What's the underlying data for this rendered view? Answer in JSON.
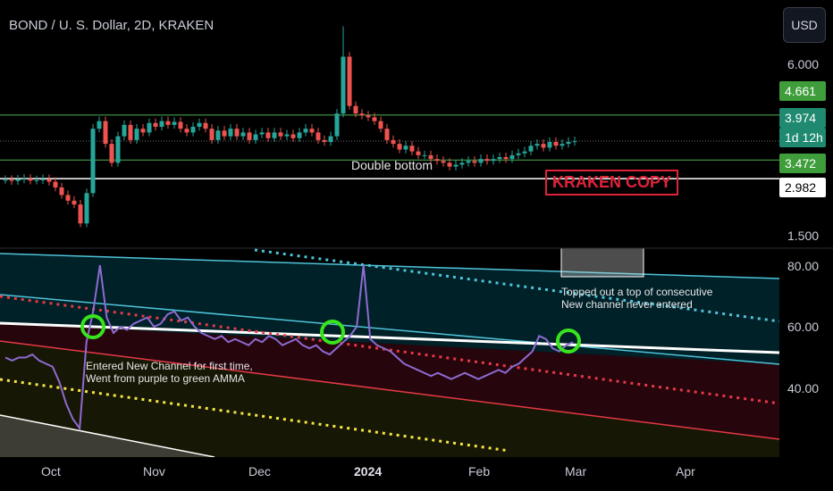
{
  "header": {
    "title": "BOND / U. S. Dollar, 2D, KRAKEN"
  },
  "toolbar": {
    "currency_button": "USD"
  },
  "price_axis": {
    "ticks": [
      "6.000",
      "1.500"
    ],
    "badges": [
      {
        "label": "4.661",
        "style": "green"
      },
      {
        "label": "3.974",
        "style": "teal"
      },
      {
        "label": "1d 12h",
        "style": "teal"
      },
      {
        "label": "3.472",
        "style": "green"
      },
      {
        "label": "2.982",
        "style": "white"
      }
    ]
  },
  "indicator_axis": {
    "ticks": [
      "80.00",
      "60.00",
      "40.00"
    ]
  },
  "annotations": {
    "double_bottom": "Double bottom",
    "watermark": "KRAKEN COPY",
    "new_channel_1": "Entered New Channel for first time,",
    "new_channel_2": "Went from purple to green AMMA",
    "topped_1": "Topped out a top of consecutive",
    "topped_2": "New channel never entered"
  },
  "time_axis": {
    "labels": [
      {
        "text": "Oct",
        "bold": false
      },
      {
        "text": "Nov",
        "bold": false
      },
      {
        "text": "Dec",
        "bold": false
      },
      {
        "text": "2024",
        "bold": true
      },
      {
        "text": "Feb",
        "bold": false
      },
      {
        "text": "Mar",
        "bold": false
      },
      {
        "text": "Apr",
        "bold": false
      }
    ]
  },
  "colors": {
    "up": "#26a69a",
    "down": "#ef5350",
    "level": "#4caf50",
    "indicator": "#8e6bd1",
    "circle": "#39e41c"
  },
  "chart_data": {
    "type": "candlestick",
    "interval": "2D",
    "price_levels": [
      4.661,
      3.974,
      3.472,
      2.982
    ],
    "closes": [
      2.95,
      2.92,
      2.96,
      2.98,
      2.93,
      2.94,
      2.97,
      2.9,
      2.75,
      2.55,
      2.4,
      2.3,
      1.8,
      2.6,
      4.3,
      4.5,
      3.9,
      3.4,
      4.1,
      4.4,
      4.0,
      4.3,
      4.2,
      4.45,
      4.35,
      4.5,
      4.4,
      4.48,
      4.3,
      4.2,
      4.35,
      4.45,
      4.3,
      4.0,
      4.25,
      4.1,
      4.3,
      4.1,
      4.2,
      4.0,
      4.15,
      4.2,
      4.05,
      4.2,
      4.1,
      4.15,
      4.05,
      4.2,
      4.3,
      4.2,
      4.0,
      3.95,
      4.1,
      4.7,
      6.2,
      4.9,
      4.7,
      4.65,
      4.6,
      4.5,
      4.3,
      4.0,
      3.9,
      3.75,
      3.85,
      3.7,
      3.6,
      3.6,
      3.5,
      3.45,
      3.4,
      3.3,
      3.35,
      3.4,
      3.45,
      3.4,
      3.5,
      3.45,
      3.5,
      3.55,
      3.5,
      3.6,
      3.65,
      3.7,
      3.85,
      3.9,
      3.8,
      3.95,
      3.85,
      3.9,
      3.95,
      3.97
    ],
    "indicator": {
      "ylim": [
        20,
        85
      ],
      "values": [
        50,
        49,
        50,
        50,
        51,
        49,
        48,
        47,
        42,
        35,
        30,
        27,
        55,
        65,
        80,
        63,
        58,
        60,
        59,
        61,
        62,
        63,
        60,
        61,
        64,
        65,
        62,
        63,
        60,
        58,
        57,
        56,
        57,
        55,
        56,
        55,
        54,
        56,
        55,
        57,
        56,
        54,
        55,
        56,
        54,
        53,
        54,
        52,
        51,
        53,
        55,
        57,
        60,
        80,
        56,
        54,
        53,
        52,
        50,
        48,
        47,
        46,
        45,
        44,
        45,
        44,
        43,
        44,
        45,
        44,
        43,
        44,
        45,
        46,
        45,
        47,
        48,
        50,
        52,
        57,
        56,
        53,
        52,
        54,
        55
      ]
    }
  }
}
